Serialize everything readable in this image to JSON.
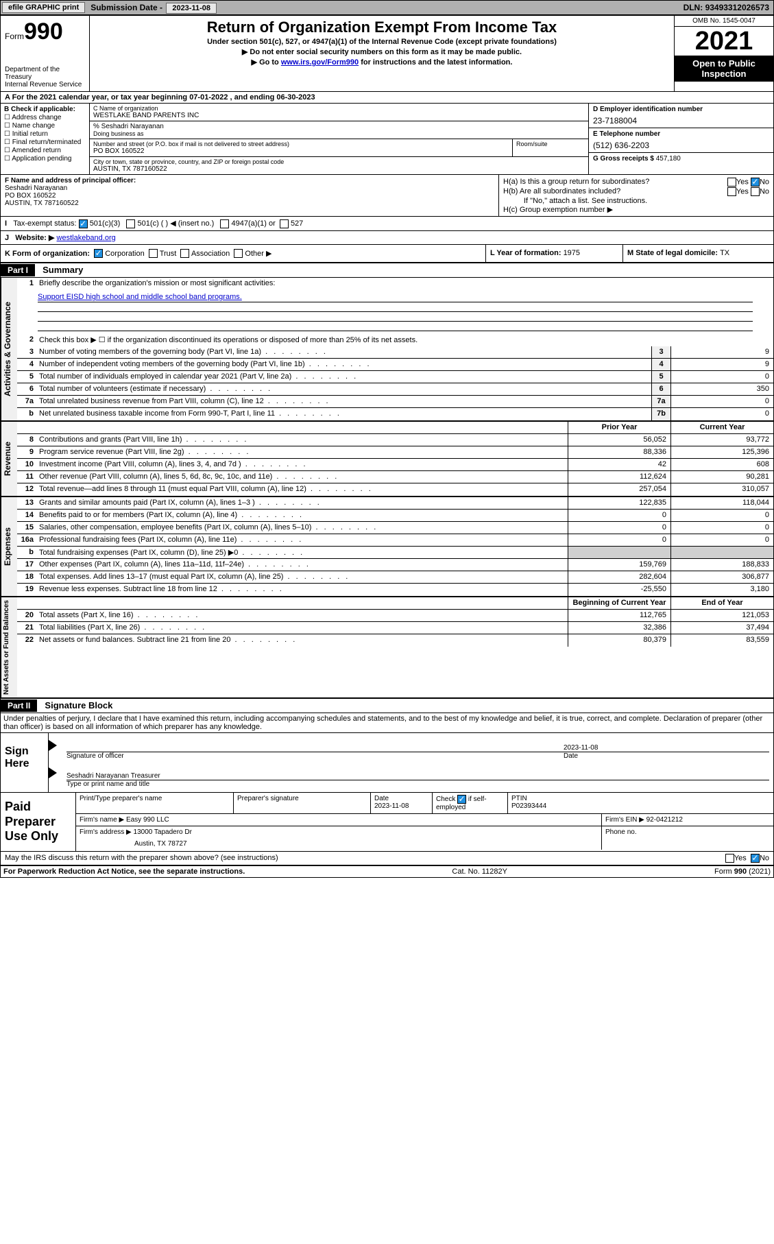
{
  "topbar": {
    "efile": "efile GRAPHIC print",
    "submission_label": "Submission Date - ",
    "submission_date": "2023-11-08",
    "dln_label": "DLN: ",
    "dln": "93493312026573"
  },
  "header": {
    "form_word": "Form",
    "form_num": "990",
    "dept": "Department of the Treasury",
    "irs": "Internal Revenue Service",
    "title": "Return of Organization Exempt From Income Tax",
    "sub1": "Under section 501(c), 527, or 4947(a)(1) of the Internal Revenue Code (except private foundations)",
    "sub2": "▶ Do not enter social security numbers on this form as it may be made public.",
    "sub3_pre": "▶ Go to ",
    "sub3_link": "www.irs.gov/Form990",
    "sub3_post": " for instructions and the latest information.",
    "omb": "OMB No. 1545-0047",
    "year": "2021",
    "open1": "Open to Public",
    "open2": "Inspection"
  },
  "row_a": "A For the 2021 calendar year, or tax year beginning 07-01-2022   , and ending 06-30-2023",
  "col_b": {
    "label": "B Check if applicable:",
    "opts": [
      "Address change",
      "Name change",
      "Initial return",
      "Final return/terminated",
      "Amended return",
      "Application pending"
    ]
  },
  "col_c": {
    "name_lbl": "C Name of organization",
    "name": "WESTLAKE BAND PARENTS INC",
    "care_lbl": "% Seshadri Narayanan",
    "dba_lbl": "Doing business as",
    "street_lbl": "Number and street (or P.O. box if mail is not delivered to street address)",
    "street": "PO BOX 160522",
    "suite_lbl": "Room/suite",
    "city_lbl": "City or town, state or province, country, and ZIP or foreign postal code",
    "city": "AUSTIN, TX  787160522"
  },
  "col_d": {
    "ein_lbl": "D Employer identification number",
    "ein": "23-7188004",
    "phone_lbl": "E Telephone number",
    "phone": "(512) 636-2203",
    "gross_lbl": "G Gross receipts $ ",
    "gross": "457,180"
  },
  "row_f": {
    "lbl": "F Name and address of principal officer:",
    "name": "Seshadri Narayanan",
    "addr1": "PO BOX 160522",
    "addr2": "AUSTIN, TX  787160522"
  },
  "row_h": {
    "ha": "H(a)  Is this a group return for subordinates?",
    "hb": "H(b)  Are all subordinates included?",
    "hb_note": "If \"No,\" attach a list. See instructions.",
    "hc": "H(c)  Group exemption number ▶",
    "yes": "Yes",
    "no": "No"
  },
  "row_i": {
    "lbl": "Tax-exempt status:",
    "opts": [
      "501(c)(3)",
      "501(c) (  ) ◀ (insert no.)",
      "4947(a)(1) or",
      "527"
    ]
  },
  "row_j": {
    "lbl": "Website: ▶ ",
    "val": "westlakeband.org"
  },
  "row_k": {
    "lbl": "K Form of organization:",
    "opts": [
      "Corporation",
      "Trust",
      "Association",
      "Other ▶"
    ],
    "year_lbl": "L Year of formation: ",
    "year": "1975",
    "state_lbl": "M State of legal domicile: ",
    "state": "TX"
  },
  "part1": {
    "hdr": "Part I",
    "title": "Summary",
    "line1_lbl": "Briefly describe the organization's mission or most significant activities:",
    "mission": "Support EISD high school and middle school band programs.",
    "line2": "Check this box ▶ ☐  if the organization discontinued its operations or disposed of more than 25% of its net assets.",
    "gov": [
      {
        "n": "3",
        "t": "Number of voting members of the governing body (Part VI, line 1a)",
        "b": "3",
        "v": "9"
      },
      {
        "n": "4",
        "t": "Number of independent voting members of the governing body (Part VI, line 1b)",
        "b": "4",
        "v": "9"
      },
      {
        "n": "5",
        "t": "Total number of individuals employed in calendar year 2021 (Part V, line 2a)",
        "b": "5",
        "v": "0"
      },
      {
        "n": "6",
        "t": "Total number of volunteers (estimate if necessary)",
        "b": "6",
        "v": "350"
      },
      {
        "n": "7a",
        "t": "Total unrelated business revenue from Part VIII, column (C), line 12",
        "b": "7a",
        "v": "0"
      },
      {
        "n": "b",
        "t": "Net unrelated business taxable income from Form 990-T, Part I, line 11",
        "b": "7b",
        "v": "0"
      }
    ],
    "col_hdrs": {
      "prior": "Prior Year",
      "current": "Current Year",
      "begin": "Beginning of Current Year",
      "end": "End of Year"
    },
    "rev": [
      {
        "n": "8",
        "t": "Contributions and grants (Part VIII, line 1h)",
        "p": "56,052",
        "c": "93,772"
      },
      {
        "n": "9",
        "t": "Program service revenue (Part VIII, line 2g)",
        "p": "88,336",
        "c": "125,396"
      },
      {
        "n": "10",
        "t": "Investment income (Part VIII, column (A), lines 3, 4, and 7d )",
        "p": "42",
        "c": "608"
      },
      {
        "n": "11",
        "t": "Other revenue (Part VIII, column (A), lines 5, 6d, 8c, 9c, 10c, and 11e)",
        "p": "112,624",
        "c": "90,281"
      },
      {
        "n": "12",
        "t": "Total revenue—add lines 8 through 11 (must equal Part VIII, column (A), line 12)",
        "p": "257,054",
        "c": "310,057"
      }
    ],
    "exp": [
      {
        "n": "13",
        "t": "Grants and similar amounts paid (Part IX, column (A), lines 1–3 )",
        "p": "122,835",
        "c": "118,044"
      },
      {
        "n": "14",
        "t": "Benefits paid to or for members (Part IX, column (A), line 4)",
        "p": "0",
        "c": "0"
      },
      {
        "n": "15",
        "t": "Salaries, other compensation, employee benefits (Part IX, column (A), lines 5–10)",
        "p": "0",
        "c": "0"
      },
      {
        "n": "16a",
        "t": "Professional fundraising fees (Part IX, column (A), line 11e)",
        "p": "0",
        "c": "0"
      },
      {
        "n": "b",
        "t": "Total fundraising expenses (Part IX, column (D), line 25) ▶0",
        "p": "",
        "c": "",
        "shade": true
      },
      {
        "n": "17",
        "t": "Other expenses (Part IX, column (A), lines 11a–11d, 11f–24e)",
        "p": "159,769",
        "c": "188,833"
      },
      {
        "n": "18",
        "t": "Total expenses. Add lines 13–17 (must equal Part IX, column (A), line 25)",
        "p": "282,604",
        "c": "306,877"
      },
      {
        "n": "19",
        "t": "Revenue less expenses. Subtract line 18 from line 12",
        "p": "-25,550",
        "c": "3,180"
      }
    ],
    "net": [
      {
        "n": "20",
        "t": "Total assets (Part X, line 16)",
        "p": "112,765",
        "c": "121,053"
      },
      {
        "n": "21",
        "t": "Total liabilities (Part X, line 26)",
        "p": "32,386",
        "c": "37,494"
      },
      {
        "n": "22",
        "t": "Net assets or fund balances. Subtract line 21 from line 20",
        "p": "80,379",
        "c": "83,559"
      }
    ],
    "side_labels": {
      "gov": "Activities & Governance",
      "rev": "Revenue",
      "exp": "Expenses",
      "net": "Net Assets or Fund Balances"
    }
  },
  "part2": {
    "hdr": "Part II",
    "title": "Signature Block",
    "penalty": "Under penalties of perjury, I declare that I have examined this return, including accompanying schedules and statements, and to the best of my knowledge and belief, it is true, correct, and complete. Declaration of preparer (other than officer) is based on all information of which preparer has any knowledge.",
    "sign_here": "Sign Here",
    "sig_officer": "Signature of officer",
    "sig_date": "Date",
    "sig_date_val": "2023-11-08",
    "sig_name": "Seshadri Narayanan  Treasurer",
    "sig_name_lbl": "Type or print name and title",
    "paid_lbl": "Paid Preparer Use Only",
    "prep_name_lbl": "Print/Type preparer's name",
    "prep_sig_lbl": "Preparer's signature",
    "prep_date_lbl": "Date",
    "prep_date": "2023-11-08",
    "prep_self": "Check ☑ if self-employed",
    "ptin_lbl": "PTIN",
    "ptin": "P02393444",
    "firm_name_lbl": "Firm's name    ▶ ",
    "firm_name": "Easy 990 LLC",
    "firm_ein_lbl": "Firm's EIN ▶ ",
    "firm_ein": "92-0421212",
    "firm_addr_lbl": "Firm's address ▶ ",
    "firm_addr1": "13000 Tapadero Dr",
    "firm_addr2": "Austin, TX  78727",
    "phone_lbl": "Phone no.",
    "discuss": "May the IRS discuss this return with the preparer shown above? (see instructions)"
  },
  "footer": {
    "paperwork": "For Paperwork Reduction Act Notice, see the separate instructions.",
    "cat": "Cat. No. 11282Y",
    "form": "Form 990 (2021)"
  }
}
